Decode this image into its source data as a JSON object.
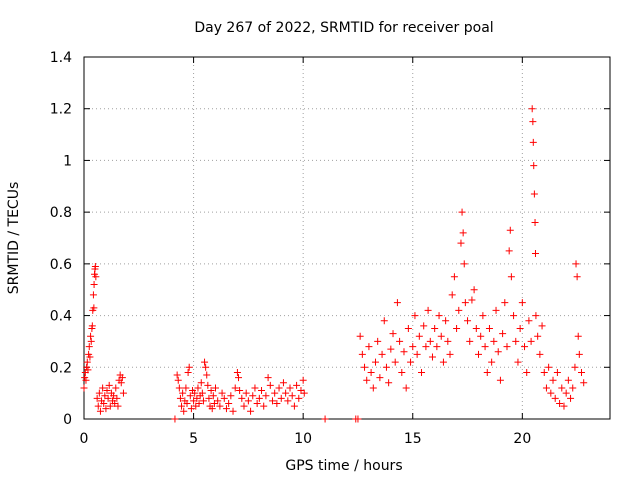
{
  "chart_data": {
    "type": "scatter",
    "title": "Day 267 of 2022, SRMTID for receiver poal",
    "xlabel": "GPS time / hours",
    "ylabel": "SRMTID / TECUs",
    "xlim": [
      0,
      24
    ],
    "ylim": [
      0,
      1.4
    ],
    "x_ticks": [
      0,
      5,
      10,
      15,
      20
    ],
    "x_tick_labels": [
      "0",
      "5",
      "10",
      "15",
      "20"
    ],
    "y_ticks": [
      0,
      0.2,
      0.4,
      0.6,
      0.8,
      1.0,
      1.2,
      1.4
    ],
    "y_tick_labels": [
      "0",
      "0.2",
      "0.4",
      "0.6",
      "0.8",
      "1",
      "1.2",
      "1.4"
    ],
    "grid": true,
    "marker": "+",
    "color": "#ff0000",
    "series": [
      {
        "name": "SRMTID",
        "points": [
          [
            0.0,
            0.12
          ],
          [
            0.03,
            0.16
          ],
          [
            0.06,
            0.18
          ],
          [
            0.09,
            0.15
          ],
          [
            0.12,
            0.2
          ],
          [
            0.15,
            0.22
          ],
          [
            0.18,
            0.19
          ],
          [
            0.21,
            0.25
          ],
          [
            0.24,
            0.28
          ],
          [
            0.27,
            0.24
          ],
          [
            0.3,
            0.32
          ],
          [
            0.33,
            0.3
          ],
          [
            0.36,
            0.35
          ],
          [
            0.4,
            0.42
          ],
          [
            0.43,
            0.48
          ],
          [
            0.46,
            0.52
          ],
          [
            0.48,
            0.56
          ],
          [
            0.5,
            0.58
          ],
          [
            0.52,
            0.59
          ],
          [
            0.54,
            0.55
          ],
          [
            0.45,
            0.43
          ],
          [
            0.38,
            0.36
          ],
          [
            0.6,
            0.08
          ],
          [
            0.65,
            0.05
          ],
          [
            0.7,
            0.1
          ],
          [
            0.75,
            0.03
          ],
          [
            0.8,
            0.07
          ],
          [
            0.85,
            0.12
          ],
          [
            0.9,
            0.06
          ],
          [
            0.95,
            0.09
          ],
          [
            1.0,
            0.04
          ],
          [
            1.05,
            0.11
          ],
          [
            1.1,
            0.08
          ],
          [
            1.15,
            0.13
          ],
          [
            1.2,
            0.05
          ],
          [
            1.25,
            0.1
          ],
          [
            1.3,
            0.07
          ],
          [
            1.35,
            0.09
          ],
          [
            1.4,
            0.06
          ],
          [
            1.45,
            0.12
          ],
          [
            1.5,
            0.08
          ],
          [
            1.55,
            0.05
          ],
          [
            1.6,
            0.15
          ],
          [
            1.65,
            0.17
          ],
          [
            1.7,
            0.14
          ],
          [
            1.75,
            0.16
          ],
          [
            1.8,
            0.1
          ],
          [
            4.15,
            0.0
          ],
          [
            4.25,
            0.17
          ],
          [
            4.3,
            0.15
          ],
          [
            4.35,
            0.12
          ],
          [
            4.4,
            0.08
          ],
          [
            4.45,
            0.05
          ],
          [
            4.5,
            0.1
          ],
          [
            4.55,
            0.03
          ],
          [
            4.6,
            0.07
          ],
          [
            4.65,
            0.12
          ],
          [
            4.7,
            0.06
          ],
          [
            4.75,
            0.18
          ],
          [
            4.8,
            0.2
          ],
          [
            4.85,
            0.09
          ],
          [
            4.9,
            0.04
          ],
          [
            4.95,
            0.11
          ],
          [
            5.0,
            0.07
          ],
          [
            5.05,
            0.1
          ],
          [
            5.1,
            0.05
          ],
          [
            5.15,
            0.08
          ],
          [
            5.2,
            0.12
          ],
          [
            5.25,
            0.06
          ],
          [
            5.3,
            0.09
          ],
          [
            5.35,
            0.14
          ],
          [
            5.4,
            0.1
          ],
          [
            5.45,
            0.07
          ],
          [
            5.5,
            0.22
          ],
          [
            5.55,
            0.2
          ],
          [
            5.6,
            0.17
          ],
          [
            5.65,
            0.13
          ],
          [
            5.7,
            0.08
          ],
          [
            5.75,
            0.05
          ],
          [
            5.8,
            0.11
          ],
          [
            5.85,
            0.04
          ],
          [
            5.9,
            0.09
          ],
          [
            5.95,
            0.06
          ],
          [
            6.0,
            0.12
          ],
          [
            6.1,
            0.07
          ],
          [
            6.2,
            0.05
          ],
          [
            6.3,
            0.1
          ],
          [
            6.4,
            0.08
          ],
          [
            6.5,
            0.04
          ],
          [
            6.6,
            0.06
          ],
          [
            6.7,
            0.09
          ],
          [
            6.8,
            0.03
          ],
          [
            6.9,
            0.12
          ],
          [
            7.0,
            0.18
          ],
          [
            7.05,
            0.16
          ],
          [
            7.1,
            0.11
          ],
          [
            7.2,
            0.08
          ],
          [
            7.3,
            0.05
          ],
          [
            7.4,
            0.1
          ],
          [
            7.5,
            0.07
          ],
          [
            7.6,
            0.03
          ],
          [
            7.7,
            0.09
          ],
          [
            7.8,
            0.12
          ],
          [
            7.9,
            0.06
          ],
          [
            8.0,
            0.08
          ],
          [
            8.1,
            0.11
          ],
          [
            8.2,
            0.05
          ],
          [
            8.3,
            0.09
          ],
          [
            8.4,
            0.16
          ],
          [
            8.5,
            0.13
          ],
          [
            8.6,
            0.07
          ],
          [
            8.7,
            0.1
          ],
          [
            8.8,
            0.06
          ],
          [
            8.9,
            0.12
          ],
          [
            9.0,
            0.08
          ],
          [
            9.1,
            0.14
          ],
          [
            9.2,
            0.1
          ],
          [
            9.3,
            0.07
          ],
          [
            9.4,
            0.12
          ],
          [
            9.5,
            0.09
          ],
          [
            9.6,
            0.05
          ],
          [
            9.7,
            0.13
          ],
          [
            9.8,
            0.08
          ],
          [
            9.9,
            0.11
          ],
          [
            10.0,
            0.15
          ],
          [
            10.05,
            0.1
          ],
          [
            11.0,
            0.0
          ],
          [
            12.4,
            0.0
          ],
          [
            12.5,
            0.0
          ],
          [
            12.6,
            0.32
          ],
          [
            12.7,
            0.25
          ],
          [
            12.8,
            0.2
          ],
          [
            12.9,
            0.15
          ],
          [
            13.0,
            0.28
          ],
          [
            13.1,
            0.18
          ],
          [
            13.2,
            0.12
          ],
          [
            13.3,
            0.22
          ],
          [
            13.4,
            0.3
          ],
          [
            13.5,
            0.16
          ],
          [
            13.6,
            0.25
          ],
          [
            13.7,
            0.38
          ],
          [
            13.8,
            0.2
          ],
          [
            13.9,
            0.14
          ],
          [
            14.0,
            0.27
          ],
          [
            14.1,
            0.33
          ],
          [
            14.2,
            0.22
          ],
          [
            14.3,
            0.45
          ],
          [
            14.4,
            0.3
          ],
          [
            14.5,
            0.18
          ],
          [
            14.6,
            0.26
          ],
          [
            14.7,
            0.12
          ],
          [
            14.8,
            0.35
          ],
          [
            14.9,
            0.22
          ],
          [
            15.0,
            0.28
          ],
          [
            15.1,
            0.4
          ],
          [
            15.2,
            0.25
          ],
          [
            15.3,
            0.32
          ],
          [
            15.4,
            0.18
          ],
          [
            15.5,
            0.36
          ],
          [
            15.6,
            0.28
          ],
          [
            15.7,
            0.42
          ],
          [
            15.8,
            0.3
          ],
          [
            15.9,
            0.24
          ],
          [
            16.0,
            0.35
          ],
          [
            16.1,
            0.28
          ],
          [
            16.2,
            0.4
          ],
          [
            16.3,
            0.32
          ],
          [
            16.4,
            0.22
          ],
          [
            16.5,
            0.38
          ],
          [
            16.6,
            0.3
          ],
          [
            16.7,
            0.25
          ],
          [
            16.8,
            0.48
          ],
          [
            16.9,
            0.55
          ],
          [
            17.0,
            0.35
          ],
          [
            17.1,
            0.42
          ],
          [
            17.2,
            0.68
          ],
          [
            17.25,
            0.8
          ],
          [
            17.3,
            0.72
          ],
          [
            17.35,
            0.6
          ],
          [
            17.4,
            0.45
          ],
          [
            17.5,
            0.38
          ],
          [
            17.6,
            0.3
          ],
          [
            17.7,
            0.46
          ],
          [
            17.8,
            0.5
          ],
          [
            17.9,
            0.35
          ],
          [
            18.0,
            0.25
          ],
          [
            18.1,
            0.32
          ],
          [
            18.2,
            0.4
          ],
          [
            18.3,
            0.28
          ],
          [
            18.4,
            0.18
          ],
          [
            18.5,
            0.35
          ],
          [
            18.6,
            0.22
          ],
          [
            18.7,
            0.3
          ],
          [
            18.8,
            0.42
          ],
          [
            18.9,
            0.26
          ],
          [
            19.0,
            0.15
          ],
          [
            19.1,
            0.33
          ],
          [
            19.2,
            0.45
          ],
          [
            19.3,
            0.28
          ],
          [
            19.4,
            0.65
          ],
          [
            19.45,
            0.73
          ],
          [
            19.5,
            0.55
          ],
          [
            19.6,
            0.4
          ],
          [
            19.7,
            0.3
          ],
          [
            19.8,
            0.22
          ],
          [
            19.9,
            0.35
          ],
          [
            20.0,
            0.45
          ],
          [
            20.1,
            0.28
          ],
          [
            20.2,
            0.18
          ],
          [
            20.3,
            0.38
          ],
          [
            20.4,
            0.3
          ],
          [
            20.45,
            1.2
          ],
          [
            20.48,
            1.15
          ],
          [
            20.5,
            1.07
          ],
          [
            20.52,
            0.98
          ],
          [
            20.55,
            0.87
          ],
          [
            20.58,
            0.76
          ],
          [
            20.6,
            0.64
          ],
          [
            20.62,
            0.4
          ],
          [
            20.7,
            0.32
          ],
          [
            20.8,
            0.25
          ],
          [
            20.9,
            0.36
          ],
          [
            21.0,
            0.18
          ],
          [
            21.1,
            0.12
          ],
          [
            21.2,
            0.2
          ],
          [
            21.3,
            0.1
          ],
          [
            21.4,
            0.15
          ],
          [
            21.5,
            0.08
          ],
          [
            21.6,
            0.18
          ],
          [
            21.7,
            0.06
          ],
          [
            21.8,
            0.12
          ],
          [
            21.9,
            0.05
          ],
          [
            22.0,
            0.1
          ],
          [
            22.1,
            0.15
          ],
          [
            22.2,
            0.08
          ],
          [
            22.3,
            0.12
          ],
          [
            22.4,
            0.2
          ],
          [
            22.45,
            0.6
          ],
          [
            22.5,
            0.55
          ],
          [
            22.55,
            0.32
          ],
          [
            22.6,
            0.25
          ],
          [
            22.7,
            0.18
          ],
          [
            22.8,
            0.14
          ]
        ]
      }
    ]
  }
}
